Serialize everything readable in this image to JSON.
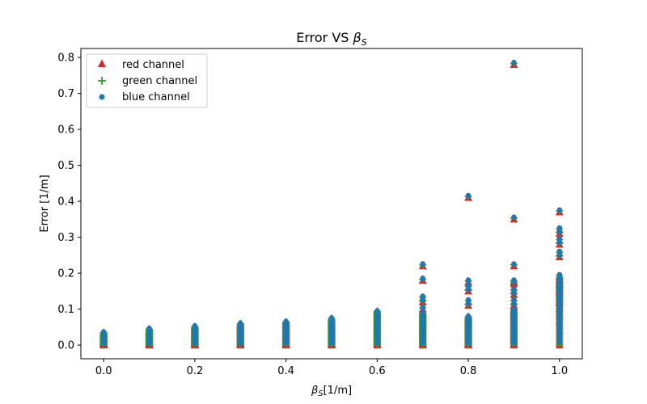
{
  "chart_data": {
    "type": "scatter",
    "title_main": "Error VS ",
    "title_sym": "β",
    "title_sub": "S",
    "xlabel_sym": "β",
    "xlabel_sub": "S",
    "xlabel_unit": "[1/m]",
    "ylabel": "Error [1/m]",
    "xlim": [
      -0.05,
      1.05
    ],
    "ylim": [
      -0.038,
      0.825
    ],
    "xticks": [
      "0.0",
      "0.2",
      "0.4",
      "0.6",
      "0.8",
      "1.0"
    ],
    "yticks": [
      "0.0",
      "0.1",
      "0.2",
      "0.3",
      "0.4",
      "0.5",
      "0.6",
      "0.7",
      "0.8"
    ],
    "grid": false,
    "legend_position": "upper-left",
    "x_values": [
      0.0,
      0.1,
      0.2,
      0.3,
      0.4,
      0.5,
      0.6,
      0.7,
      0.8,
      0.9,
      1.0
    ],
    "dense_max": [
      0.035,
      0.045,
      0.052,
      0.06,
      0.065,
      0.075,
      0.095,
      0.09,
      0.08,
      0.1,
      0.19
    ],
    "outliers": [
      [],
      [],
      [],
      [],
      [],
      [],
      [],
      [
        0.22,
        0.18,
        0.13,
        0.12,
        0.1
      ],
      [
        0.41,
        0.175,
        0.16,
        0.15,
        0.12,
        0.11
      ],
      [
        0.78,
        0.35,
        0.22,
        0.175,
        0.17,
        0.15,
        0.14,
        0.12,
        0.11
      ],
      [
        0.37,
        0.32,
        0.31,
        0.29,
        0.28,
        0.255,
        0.245,
        0.19,
        0.17,
        0.16,
        0.15,
        0.13,
        0.12
      ]
    ],
    "series": [
      {
        "name": "red channel",
        "marker": "triangle",
        "color": "#d62728"
      },
      {
        "name": "green channel",
        "marker": "plus",
        "color": "#2ca02c"
      },
      {
        "name": "blue channel",
        "marker": "circle",
        "color": "#1f77b4"
      }
    ]
  }
}
